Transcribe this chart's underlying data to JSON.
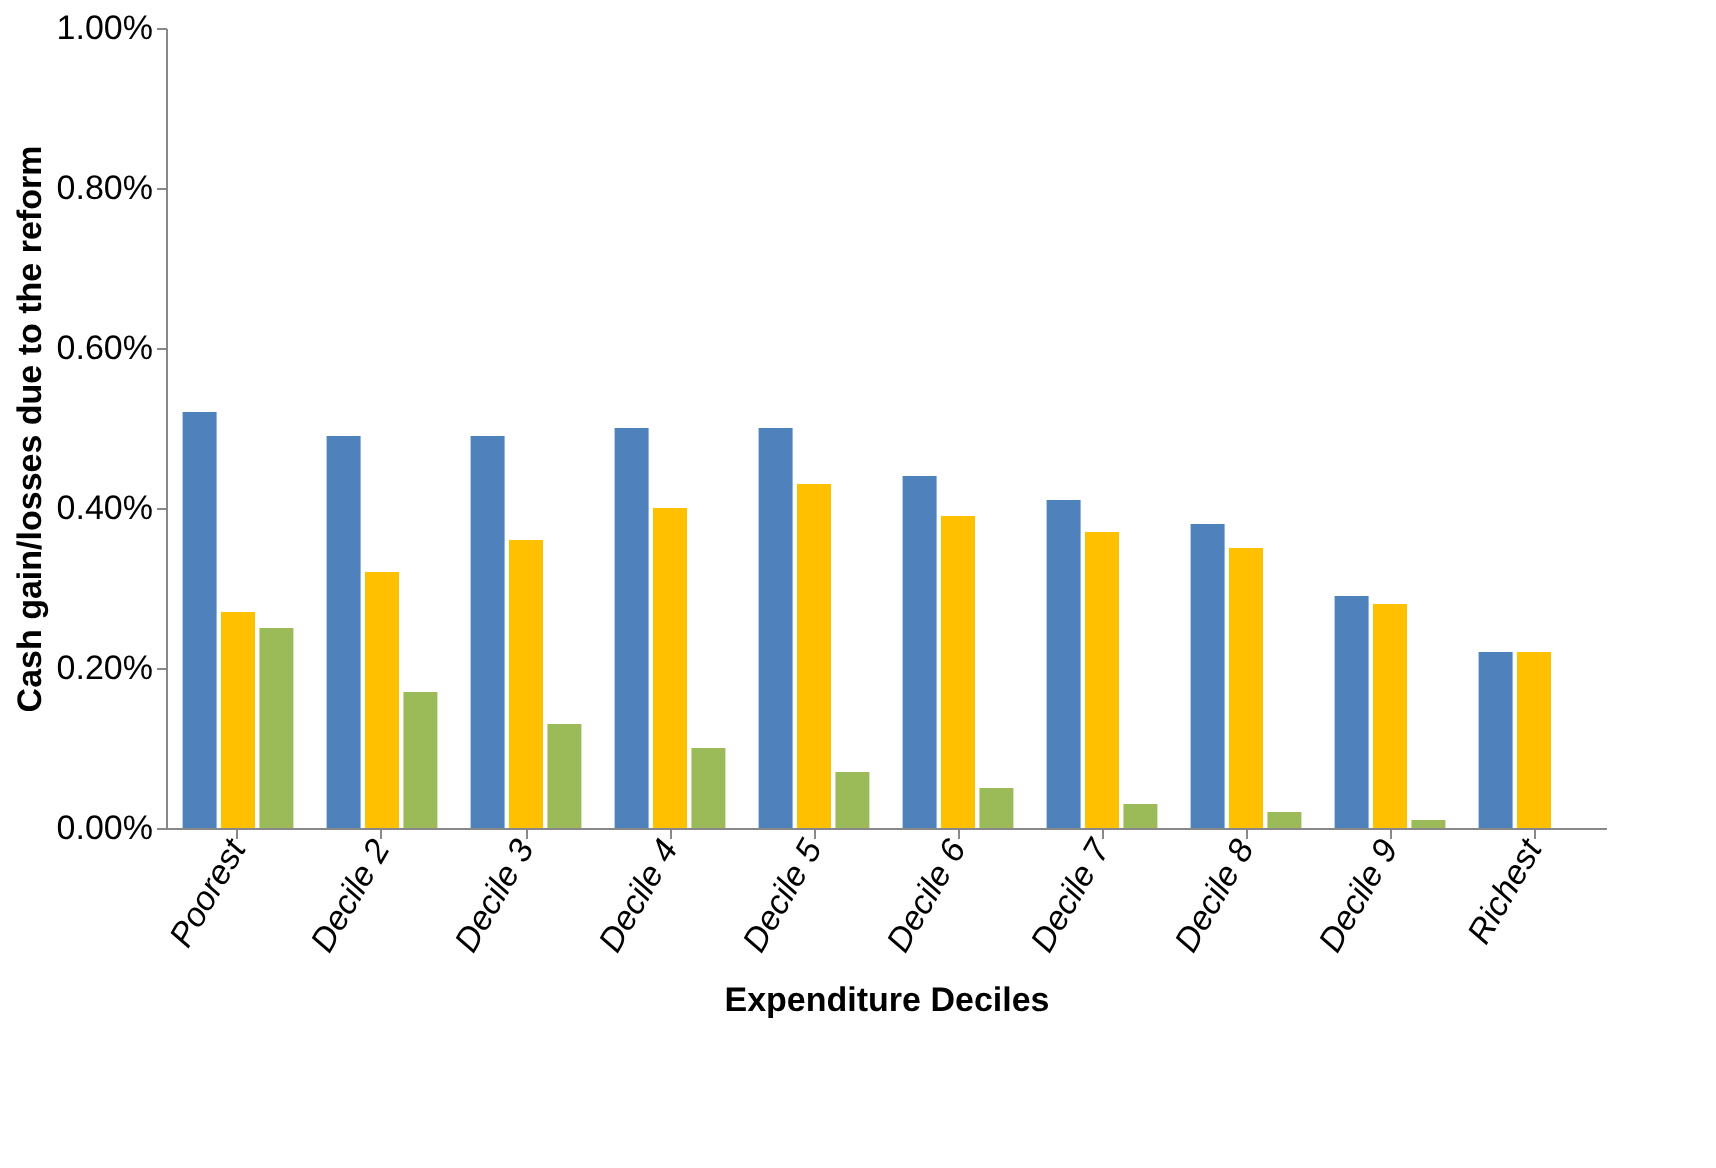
{
  "chart_data": {
    "type": "bar",
    "xlabel": "Expenditure Deciles",
    "ylabel": "Cash gain/losses due to the reform",
    "categories": [
      "Poorest",
      "Decile 2",
      "Decile 3",
      "Decile 4",
      "Decile 5",
      "Decile 6",
      "Decile 7",
      "Decile 8",
      "Decile 9",
      "Richest"
    ],
    "series": [
      {
        "color": "#4f81bd",
        "values": [
          0.52,
          0.49,
          0.49,
          0.5,
          0.5,
          0.44,
          0.41,
          0.38,
          0.29,
          0.22
        ]
      },
      {
        "color": "#ffc000",
        "values": [
          0.27,
          0.32,
          0.36,
          0.4,
          0.43,
          0.39,
          0.37,
          0.35,
          0.28,
          0.22
        ]
      },
      {
        "color": "#9bbb59",
        "values": [
          0.25,
          0.17,
          0.13,
          0.1,
          0.07,
          0.05,
          0.03,
          0.02,
          0.01,
          0
        ]
      }
    ],
    "ylim": [
      0,
      1
    ],
    "yticks": [
      {
        "value": 0,
        "label": "0.00%"
      },
      {
        "value": 0.2,
        "label": "0.20%"
      },
      {
        "value": 0.4,
        "label": "0.40%"
      },
      {
        "value": 0.6,
        "label": "0.60%"
      },
      {
        "value": 0.8,
        "label": "0.80%"
      },
      {
        "value": 1,
        "label": "1.00%"
      }
    ],
    "grid": false,
    "legend": false
  }
}
